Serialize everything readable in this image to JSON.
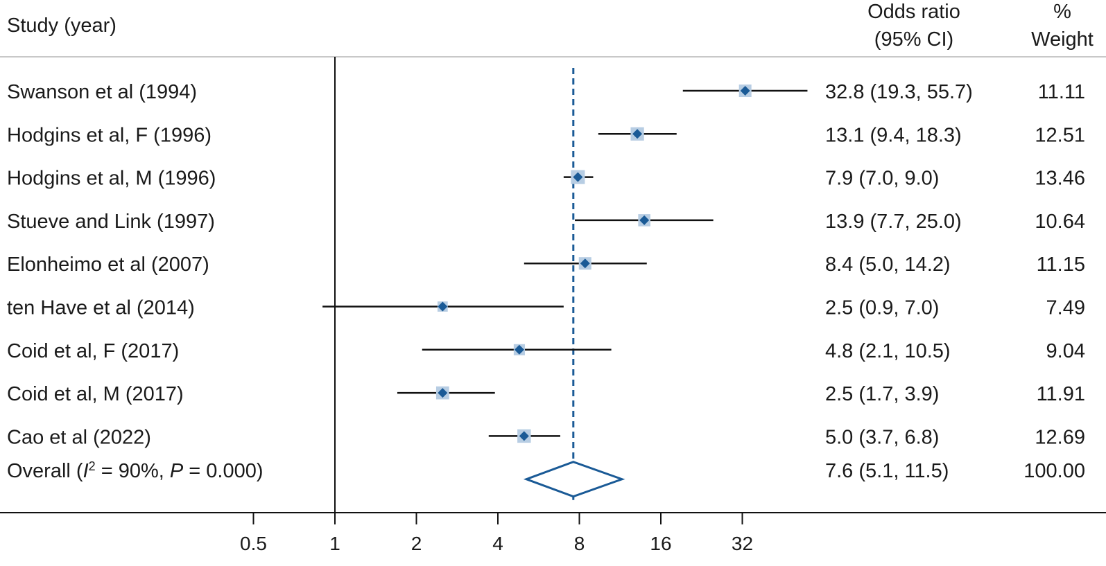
{
  "colors": {
    "marker": "#1a5a96",
    "box": "#b7cde3",
    "ci": "#111111",
    "null_line": "#111111",
    "axis": "#111111",
    "header_rule": "#c8c8c8"
  },
  "headers": {
    "study": "Study (year)",
    "or_line1": "Odds ratio",
    "or_line2": "(95% CI)",
    "wt_line1": "%",
    "wt_line2": "Weight"
  },
  "chart_data": {
    "type": "forest",
    "x_scale": "log2",
    "xlim": [
      0.5,
      32
    ],
    "x_ticks": [
      0.5,
      1,
      2,
      4,
      8,
      16,
      32
    ],
    "x_tick_labels": [
      "0.5",
      "1",
      "2",
      "4",
      "8",
      "16",
      "32"
    ],
    "null_value": 1,
    "studies": [
      {
        "label": "Swanson et al (1994)",
        "or": 32.8,
        "lo": 19.3,
        "hi": 55.7,
        "ci_text": "32.8 (19.3, 55.7)",
        "weight": 11.11,
        "weight_text": "11.11"
      },
      {
        "label": "Hodgins et al, F (1996)",
        "or": 13.1,
        "lo": 9.4,
        "hi": 18.3,
        "ci_text": "13.1 (9.4, 18.3)",
        "weight": 12.51,
        "weight_text": "12.51"
      },
      {
        "label": "Hodgins et al, M (1996)",
        "or": 7.9,
        "lo": 7.0,
        "hi": 9.0,
        "ci_text": "7.9 (7.0, 9.0)",
        "weight": 13.46,
        "weight_text": "13.46"
      },
      {
        "label": "Stueve and Link (1997)",
        "or": 13.9,
        "lo": 7.7,
        "hi": 25.0,
        "ci_text": "13.9 (7.7, 25.0)",
        "weight": 10.64,
        "weight_text": "10.64"
      },
      {
        "label": "Elonheimo et al (2007)",
        "or": 8.4,
        "lo": 5.0,
        "hi": 14.2,
        "ci_text": "8.4 (5.0, 14.2)",
        "weight": 11.15,
        "weight_text": "11.15"
      },
      {
        "label": "ten Have et al (2014)",
        "or": 2.5,
        "lo": 0.9,
        "hi": 7.0,
        "ci_text": "2.5 (0.9, 7.0)",
        "weight": 7.49,
        "weight_text": "7.49"
      },
      {
        "label": "Coid et al, F (2017)",
        "or": 4.8,
        "lo": 2.1,
        "hi": 10.5,
        "ci_text": "4.8 (2.1, 10.5)",
        "weight": 9.04,
        "weight_text": "9.04"
      },
      {
        "label": "Coid et al, M (2017)",
        "or": 2.5,
        "lo": 1.7,
        "hi": 3.9,
        "ci_text": "2.5 (1.7, 3.9)",
        "weight": 11.91,
        "weight_text": "11.91"
      },
      {
        "label": "Cao et al (2022)",
        "or": 5.0,
        "lo": 3.7,
        "hi": 6.8,
        "ci_text": "5.0 (3.7, 6.8)",
        "weight": 12.69,
        "weight_text": "12.69"
      }
    ],
    "overall": {
      "label_prefix": "Overall (",
      "label_i": "I",
      "label_sup": "2",
      "label_mid": " = 90%, ",
      "label_p": "P",
      "label_suffix": " = 0.000)",
      "or": 7.6,
      "lo": 5.1,
      "hi": 11.5,
      "ci_text": "7.6 (5.1, 11.5)",
      "weight_text": "100.00"
    }
  }
}
